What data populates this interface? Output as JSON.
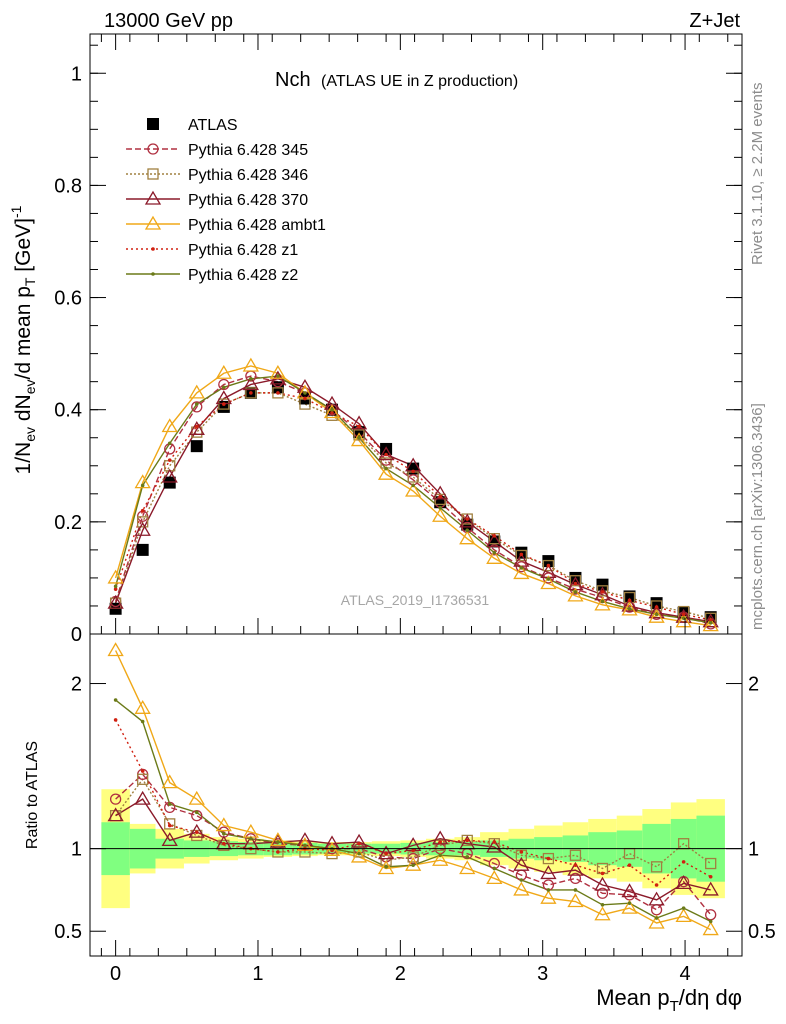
{
  "header": {
    "left": "13000 GeV pp",
    "right": "Z+Jet"
  },
  "side_text": {
    "rivet": "Rivet 3.1.10, ≥ 2.2M events",
    "mcplots": "mcplots.cern.ch [arXiv:1306.3436]"
  },
  "chart_data": [
    {
      "type": "scatter",
      "title_main": "Nch",
      "title_sub": "(ATLAS UE in Z production)",
      "watermark": "ATLAS_2019_I1736531",
      "ylabel": "1/N_ev dN_ev/d mean p_T [GeV]^-1",
      "ylim": [
        0,
        1.07
      ],
      "xlim": [
        -0.18,
        4.4
      ],
      "yticks": [
        "0",
        "0.2",
        "0.4",
        "0.6",
        "0.8",
        "1"
      ],
      "x": [
        0.0,
        0.19,
        0.38,
        0.57,
        0.76,
        0.95,
        1.14,
        1.33,
        1.52,
        1.71,
        1.9,
        2.09,
        2.28,
        2.47,
        2.66,
        2.85,
        3.04,
        3.23,
        3.42,
        3.61,
        3.8,
        3.99,
        4.18
      ],
      "series": [
        {
          "name": "ATLAS",
          "color": "#000000",
          "marker": "square",
          "values": [
            0.045,
            0.15,
            0.27,
            0.335,
            0.405,
            0.43,
            0.44,
            0.42,
            0.4,
            0.36,
            0.33,
            0.295,
            0.235,
            0.195,
            0.165,
            0.145,
            0.13,
            0.1,
            0.088,
            0.067,
            0.055,
            0.038,
            0.03
          ]
        },
        {
          "name": "Pythia 6.428 345",
          "color": "#b03040",
          "marker": "circle",
          "dash": "6,3",
          "values": [
            0.058,
            0.21,
            0.33,
            0.405,
            0.445,
            0.46,
            0.45,
            0.43,
            0.4,
            0.36,
            0.31,
            0.275,
            0.235,
            0.19,
            0.15,
            0.12,
            0.1,
            0.08,
            0.065,
            0.048,
            0.035,
            0.03,
            0.018
          ]
        },
        {
          "name": "Pythia 6.428 346",
          "color": "#a08040",
          "marker": "square-open",
          "dash": "2,2",
          "values": [
            0.055,
            0.2,
            0.3,
            0.36,
            0.41,
            0.43,
            0.43,
            0.41,
            0.39,
            0.355,
            0.305,
            0.28,
            0.24,
            0.205,
            0.17,
            0.14,
            0.122,
            0.095,
            0.077,
            0.065,
            0.05,
            0.04,
            0.028
          ]
        },
        {
          "name": "Pythia 6.428 370",
          "color": "#8b1a2a",
          "marker": "triangle",
          "dash": "",
          "values": [
            0.055,
            0.185,
            0.28,
            0.365,
            0.42,
            0.445,
            0.455,
            0.44,
            0.41,
            0.375,
            0.32,
            0.3,
            0.25,
            0.2,
            0.165,
            0.13,
            0.11,
            0.088,
            0.07,
            0.05,
            0.038,
            0.03,
            0.022
          ]
        },
        {
          "name": "Pythia 6.428 ambt1",
          "color": "#f0a818",
          "marker": "triangle",
          "dash": "",
          "values": [
            0.1,
            0.27,
            0.37,
            0.43,
            0.465,
            0.478,
            0.465,
            0.43,
            0.395,
            0.345,
            0.285,
            0.255,
            0.21,
            0.17,
            0.135,
            0.108,
            0.09,
            0.068,
            0.052,
            0.043,
            0.03,
            0.022,
            0.015
          ]
        },
        {
          "name": "Pythia 6.428 z1",
          "color": "#d02010",
          "marker": "dot",
          "dash": "2,3",
          "values": [
            0.08,
            0.22,
            0.31,
            0.37,
            0.41,
            0.43,
            0.43,
            0.42,
            0.395,
            0.37,
            0.32,
            0.29,
            0.245,
            0.205,
            0.175,
            0.142,
            0.122,
            0.09,
            0.075,
            0.06,
            0.048,
            0.035,
            0.025
          ]
        },
        {
          "name": "Pythia 6.428 z2",
          "color": "#6b7a18",
          "marker": "dot",
          "dash": "",
          "values": [
            0.085,
            0.265,
            0.34,
            0.41,
            0.44,
            0.455,
            0.46,
            0.43,
            0.4,
            0.35,
            0.295,
            0.265,
            0.225,
            0.185,
            0.145,
            0.118,
            0.098,
            0.075,
            0.058,
            0.045,
            0.035,
            0.028,
            0.02
          ]
        }
      ],
      "legend_position": "top-left"
    },
    {
      "type": "line",
      "ylabel": "Ratio to ATLAS",
      "ylim": [
        0.35,
        2.3
      ],
      "xlim": [
        -0.18,
        4.4
      ],
      "xlabel": "Mean p_T/dη dφ",
      "yticks": [
        "0.5",
        "1",
        "2"
      ],
      "xticks": [
        "0",
        "1",
        "2",
        "3",
        "4"
      ],
      "band_edges": [
        -0.1,
        0.1,
        0.28,
        0.48,
        0.66,
        0.86,
        1.04,
        1.24,
        1.42,
        1.62,
        1.8,
        2.0,
        2.18,
        2.38,
        2.56,
        2.76,
        2.94,
        3.14,
        3.32,
        3.52,
        3.7,
        3.9,
        4.08,
        4.28
      ],
      "band_inner": [
        0.16,
        0.12,
        0.06,
        0.05,
        0.045,
        0.04,
        0.04,
        0.035,
        0.03,
        0.03,
        0.03,
        0.035,
        0.04,
        0.04,
        0.05,
        0.06,
        0.07,
        0.08,
        0.1,
        0.11,
        0.15,
        0.18,
        0.2
      ],
      "band_outer": [
        0.36,
        0.15,
        0.12,
        0.09,
        0.07,
        0.06,
        0.05,
        0.045,
        0.04,
        0.04,
        0.045,
        0.05,
        0.06,
        0.07,
        0.1,
        0.12,
        0.14,
        0.16,
        0.18,
        0.2,
        0.24,
        0.28,
        0.3
      ],
      "series": [
        {
          "name": "Pythia 6.428 345",
          "values": [
            1.3,
            1.45,
            1.25,
            1.2,
            1.1,
            1.06,
            1.03,
            1.02,
            1.0,
            1.0,
            0.95,
            0.94,
            1.0,
            0.97,
            0.91,
            0.84,
            0.78,
            0.82,
            0.73,
            0.72,
            0.63,
            0.8,
            0.6
          ]
        },
        {
          "name": "Pythia 6.428 346",
          "values": [
            1.2,
            1.42,
            1.15,
            1.08,
            1.02,
            1.0,
            0.98,
            0.98,
            0.97,
            0.98,
            0.93,
            0.95,
            1.02,
            1.05,
            1.03,
            0.96,
            0.94,
            0.96,
            0.88,
            0.97,
            0.89,
            1.03,
            0.91
          ]
        },
        {
          "name": "Pythia 6.428 370",
          "values": [
            1.2,
            1.3,
            1.05,
            1.1,
            1.03,
            1.03,
            1.04,
            1.05,
            1.03,
            1.04,
            0.97,
            1.02,
            1.06,
            1.03,
            1.01,
            0.9,
            0.85,
            0.87,
            0.78,
            0.74,
            0.69,
            0.79,
            0.75
          ]
        },
        {
          "name": "Pythia 6.428 ambt1",
          "values": [
            2.2,
            1.85,
            1.4,
            1.3,
            1.14,
            1.1,
            1.05,
            1.02,
            0.99,
            0.95,
            0.88,
            0.9,
            0.93,
            0.88,
            0.82,
            0.75,
            0.7,
            0.68,
            0.6,
            0.64,
            0.55,
            0.59,
            0.51
          ]
        },
        {
          "name": "Pythia 6.428 z1",
          "values": [
            1.78,
            1.47,
            1.14,
            1.1,
            1.03,
            1.0,
            0.98,
            1.0,
            0.99,
            1.03,
            0.97,
            0.99,
            1.04,
            1.05,
            1.04,
            0.98,
            0.94,
            0.9,
            0.85,
            0.9,
            0.78,
            0.92,
            0.83
          ]
        },
        {
          "name": "Pythia 6.428 z2",
          "values": [
            1.9,
            1.77,
            1.27,
            1.22,
            1.09,
            1.06,
            1.04,
            1.02,
            1.0,
            0.97,
            0.89,
            0.9,
            0.96,
            0.95,
            0.88,
            0.81,
            0.75,
            0.75,
            0.66,
            0.67,
            0.58,
            0.64,
            0.56
          ]
        }
      ]
    }
  ]
}
